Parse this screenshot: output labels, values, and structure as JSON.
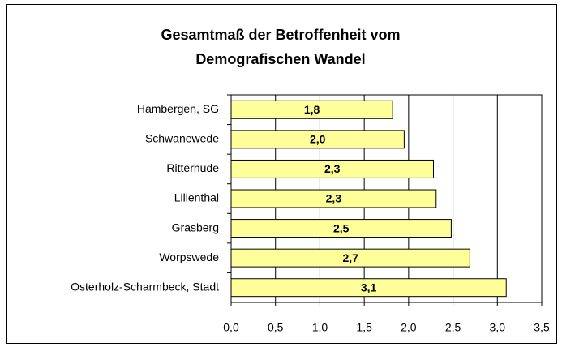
{
  "chart_data": {
    "type": "bar",
    "orientation": "horizontal",
    "title": [
      "Gesamtmaß der Betroffenheit vom",
      "Demografischen Wandel"
    ],
    "categories": [
      "Hambergen, SG",
      "Schwanewede",
      "Ritterhude",
      "Lilienthal",
      "Grasberg",
      "Worpswede",
      "Osterholz-Scharmbeck, Stadt"
    ],
    "values": [
      1.82,
      1.95,
      2.28,
      2.31,
      2.48,
      2.69,
      3.1
    ],
    "value_labels": [
      "1,8",
      "2,0",
      "2,3",
      "2,3",
      "2,5",
      "2,7",
      "3,1"
    ],
    "color": "#ffff99",
    "xlim": [
      0,
      3.5
    ],
    "xticks": [
      {
        "value": 0,
        "label": "0,0"
      },
      {
        "value": 0.5,
        "label": "0,5"
      },
      {
        "value": 1,
        "label": "1,0"
      },
      {
        "value": 1.5,
        "label": "1,5"
      },
      {
        "value": 2,
        "label": "2,0"
      },
      {
        "value": 2.5,
        "label": "2,5"
      },
      {
        "value": 3,
        "label": "3,0"
      },
      {
        "value": 3.5,
        "label": "3,5"
      }
    ],
    "grid": true
  }
}
